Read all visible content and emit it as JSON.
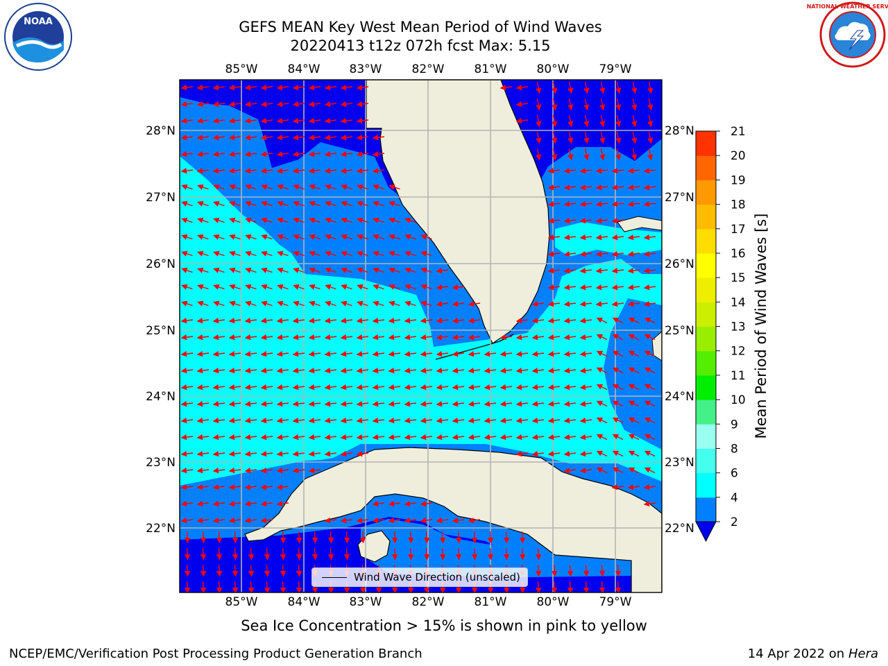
{
  "header": {
    "title_line1": "GEFS MEAN Key West Mean Period of Wind Waves",
    "title_line2": "20220413 t12z 072h fcst   Max: 5.15"
  },
  "logos": {
    "left": {
      "name": "noaa-logo",
      "text": "NOAA"
    },
    "right": {
      "name": "national-weather-service-logo",
      "text": "NATIONAL WEATHER SERVICE"
    }
  },
  "map": {
    "lon_labels": [
      "85°W",
      "84°W",
      "83°W",
      "82°W",
      "81°W",
      "80°W",
      "79°W"
    ],
    "lat_labels": [
      "28°N",
      "27°N",
      "26°N",
      "25°N",
      "24°N",
      "23°N",
      "22°N"
    ],
    "legend_label": "Wind Wave Direction (unscaled)",
    "colors": {
      "land": "#efeedd",
      "coastline": "#000000",
      "gridlines": "#b4b4b4",
      "arrows": "#ff0000",
      "class_2_4": "#0000ee",
      "class_4_6": "#0080ff",
      "class_6_8": "#00ffff"
    }
  },
  "colorbar": {
    "label": "Mean Period of Wind Waves [s]",
    "ticks": [
      "2",
      "4",
      "6",
      "8",
      "9",
      "10",
      "11",
      "12",
      "13",
      "14",
      "15",
      "16",
      "17",
      "18",
      "19",
      "20",
      "21"
    ],
    "colors": [
      "#0080ff",
      "#00ffff",
      "#44ffee",
      "#99fff0",
      "#44f088",
      "#00ee00",
      "#55ee00",
      "#99ee00",
      "#ccee00",
      "#eeee00",
      "#ffff00",
      "#ffdd00",
      "#ffbb00",
      "#ff9900",
      "#ff6600",
      "#ff3300",
      "#ff0000"
    ],
    "under_color": "#0000ee"
  },
  "footer": {
    "note": "Sea Ice Concentration > 15% is shown in pink to yellow",
    "credit_left": "NCEP/EMC/Verification Post Processing Product Generation Branch",
    "date": "14 Apr 2022 on ",
    "host": "Hera"
  }
}
